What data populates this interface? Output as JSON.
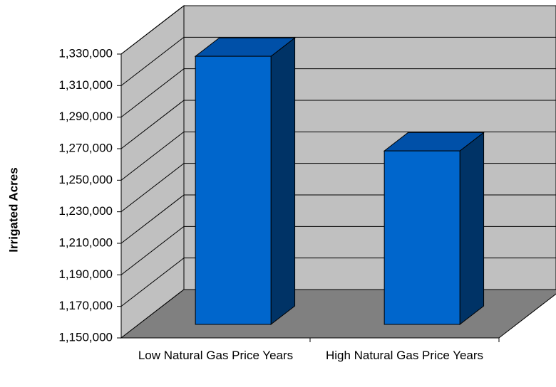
{
  "chart_data": {
    "type": "bar3d",
    "y_label": "Irrigated Acres",
    "categories": [
      "Low Natural Gas Price Years",
      "High Natural Gas Price Years"
    ],
    "values": [
      1320000,
      1260000
    ],
    "color": "#0066cc",
    "ylim": [
      1150000,
      1330000
    ],
    "yticks": [
      {
        "value": 1150000,
        "label": "1,150,000"
      },
      {
        "value": 1170000,
        "label": "1,170,000"
      },
      {
        "value": 1190000,
        "label": "1,190,000"
      },
      {
        "value": 1210000,
        "label": "1,210,000"
      },
      {
        "value": 1230000,
        "label": "1,230,000"
      },
      {
        "value": 1250000,
        "label": "1,250,000"
      },
      {
        "value": 1270000,
        "label": "1,270,000"
      },
      {
        "value": 1290000,
        "label": "1,290,000"
      },
      {
        "value": 1310000,
        "label": "1,310,000"
      },
      {
        "value": 1330000,
        "label": "1,330,000"
      }
    ],
    "grid": true
  }
}
